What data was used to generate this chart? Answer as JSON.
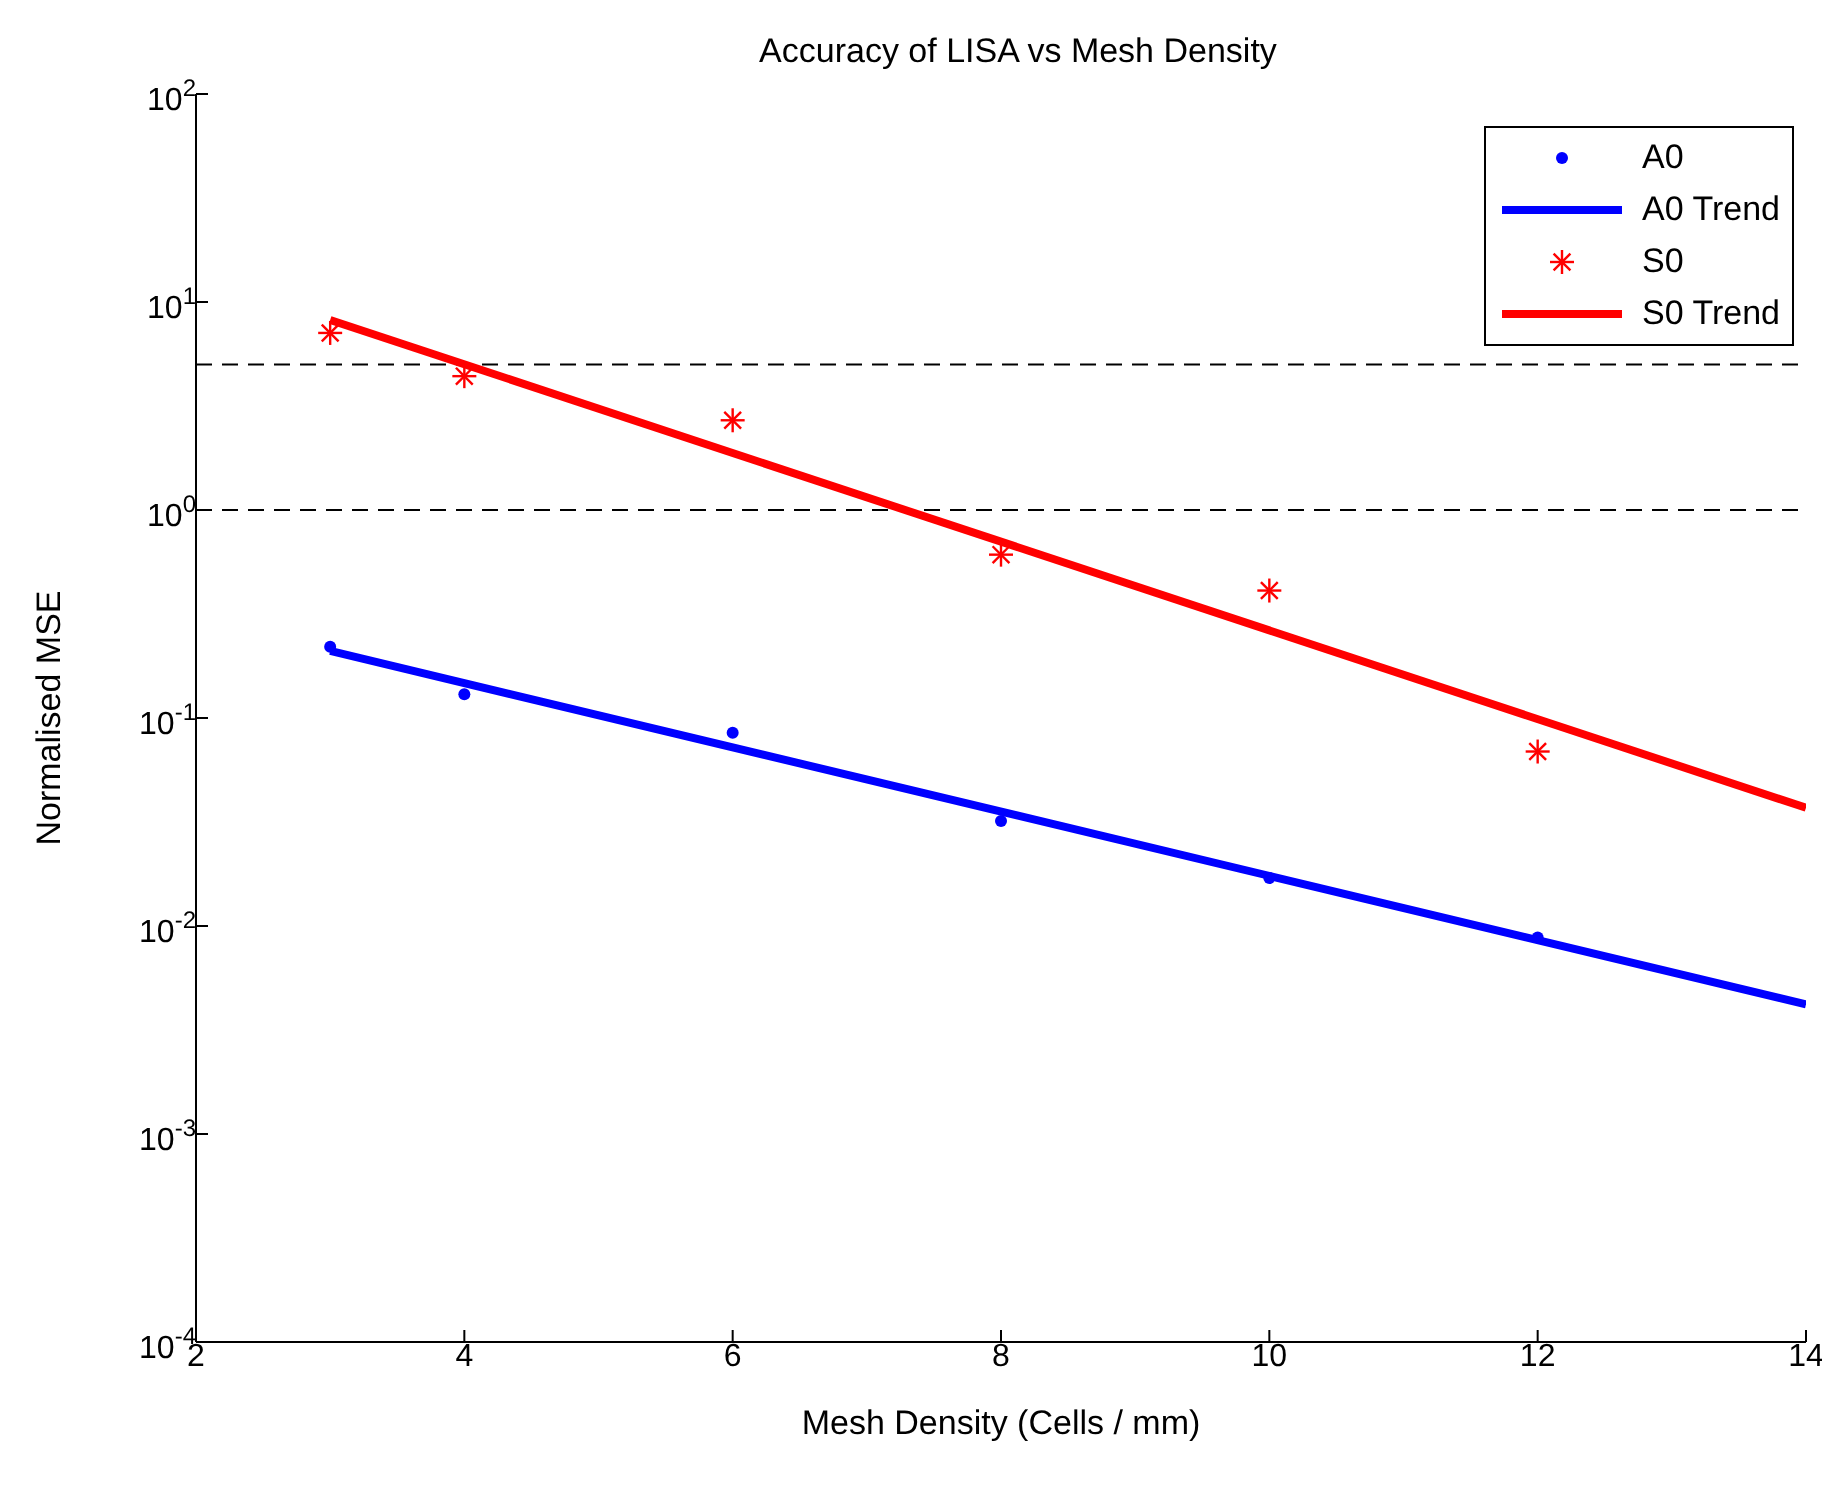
{
  "chart_data": {
    "type": "scatter",
    "title": "Accuracy of LISA vs Mesh Density",
    "xlabel": "Mesh Density (Cells / mm)",
    "ylabel": "Normalised MSE",
    "log": "y",
    "grid": false,
    "legend": "top right",
    "xlim": [
      2,
      14
    ],
    "xticks": [
      2,
      4,
      6,
      8,
      10,
      12,
      14
    ],
    "ylim": [
      0.0001,
      100
    ],
    "yticks": [
      {
        "value": 0.0001,
        "label": "10$^{-4}$"
      },
      {
        "value": 0.001,
        "label": "10$^{-3}$"
      },
      {
        "value": 0.01,
        "label": "10$^{-2}$"
      },
      {
        "value": 0.1,
        "label": "10$^{-1}$"
      },
      {
        "value": 1,
        "label": "10$^{0}$"
      },
      {
        "value": 10,
        "label": "10$^{1}$"
      },
      {
        "value": 100,
        "label": "10$^{2}$"
      }
    ],
    "ref_lines": [
      {
        "axis": "y",
        "value": 5,
        "line_style": "dashed",
        "color": "#000000"
      },
      {
        "axis": "y",
        "value": 1,
        "line_style": "dashed",
        "color": "#000000"
      }
    ],
    "series": [
      {
        "name": "A0",
        "marker": "circle",
        "color": "#0000ff",
        "x": [
          3,
          4,
          6,
          8,
          10,
          12
        ],
        "values": [
          0.22,
          0.13,
          0.085,
          0.032,
          0.017,
          0.0088
        ]
      },
      {
        "name": "A0 Trend",
        "type": "line",
        "marker": "none",
        "line_style": "solid",
        "color": "#0000ff",
        "x": [
          3,
          14
        ],
        "values": [
          0.21,
          0.0042
        ]
      },
      {
        "name": "S0",
        "marker": "cross",
        "color": "#ff0000",
        "x": [
          3,
          4,
          6,
          8,
          10,
          12
        ],
        "values": [
          7.1,
          4.4,
          2.7,
          0.61,
          0.41,
          0.069
        ]
      },
      {
        "name": "S0 Trend",
        "type": "line",
        "marker": "none",
        "line_style": "solid",
        "color": "#ff0000",
        "x": [
          3,
          14
        ],
        "values": [
          8.2,
          0.037
        ]
      }
    ]
  }
}
